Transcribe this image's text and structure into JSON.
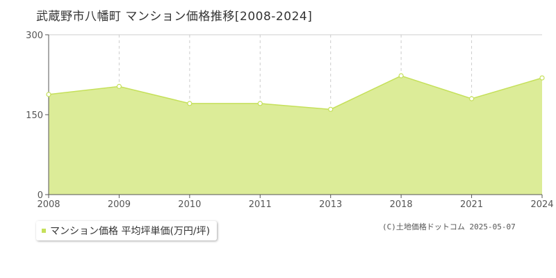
{
  "title": "武蔵野市八幡町 マンション価格推移[2008-2024]",
  "legend_label": "マンション価格 平均坪単価(万円/坪)",
  "copyright": "(C)土地価格ドットコム 2025-05-07",
  "colors": {
    "fill": "#dcec98",
    "line": "#c5e05a",
    "marker_fill": "#ffffff",
    "grid": "#cccccc",
    "axis": "#555555"
  },
  "chart_data": {
    "type": "area",
    "title": "武蔵野市八幡町 マンション価格推移[2008-2024]",
    "categories": [
      "2008",
      "2009",
      "2010",
      "2011",
      "2013",
      "2018",
      "2021",
      "2024"
    ],
    "series": [
      {
        "name": "マンション価格 平均坪単価(万円/坪)",
        "values": [
          188,
          203,
          171,
          171,
          160,
          223,
          180,
          219
        ]
      }
    ],
    "y_ticks": [
      0,
      150,
      300
    ],
    "ylim": [
      0,
      300
    ],
    "xlabel": "",
    "ylabel": "",
    "grid": true,
    "legend_position": "bottom-left"
  }
}
